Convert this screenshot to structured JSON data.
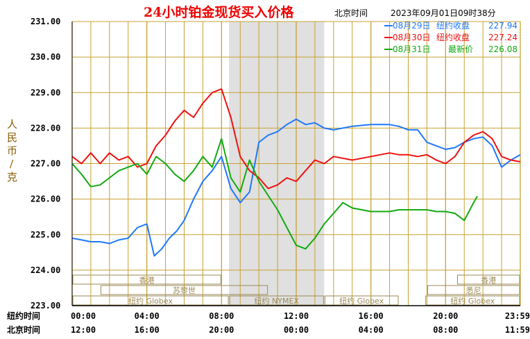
{
  "header": {
    "title": "24小时铂金现货买入价格",
    "beijing_time_label": "北京时间",
    "timestamp": "2023年09月01日09时38分"
  },
  "y_axis_label": [
    "人",
    "民",
    "币",
    "/",
    "克"
  ],
  "row_labels": {
    "ny": "纽约时间",
    "bj": "北京时间"
  },
  "colors": {
    "grid": "#c8a032",
    "axis": "#000000",
    "blue": "#1e78ff",
    "red": "#ee1111",
    "green": "#11aa11",
    "nymex_band": "#e0e0e0",
    "session": "#9a8a55"
  },
  "chart_data": {
    "type": "line",
    "title": "24小时铂金现货买入价格",
    "ylim": [
      223,
      231
    ],
    "y_ticks": [
      "231.00",
      "230.00",
      "229.00",
      "228.00",
      "227.00",
      "226.00",
      "225.00",
      "224.00",
      "223.00"
    ],
    "x_ticks_ny": [
      "00:00",
      "04:00",
      "08:00",
      "12:00",
      "16:00",
      "20:00",
      "23:59"
    ],
    "x_ticks_bj": [
      "12:00",
      "16:00",
      "20:00",
      "00:00",
      "04:00",
      "08:00",
      "11:59"
    ],
    "x_hours": [
      0,
      4,
      8,
      12,
      16,
      20,
      24
    ],
    "grid": true,
    "legend_position": "top-right",
    "sessions": [
      {
        "name": "香港",
        "row": 1,
        "start": 0,
        "end": 8
      },
      {
        "name": "香港",
        "row": 1,
        "start": 20.6,
        "end": 24
      },
      {
        "name": "苏黎世",
        "row": 2,
        "start": 1.5,
        "end": 10.5
      },
      {
        "name": "悉尼",
        "row": 2,
        "start": 19,
        "end": 24
      },
      {
        "name": "纽约 Globex",
        "row": 3,
        "start": 0,
        "end": 8.4
      },
      {
        "name": "纽约 NYMEX",
        "row": 3,
        "start": 8.4,
        "end": 13.5
      },
      {
        "name": "纽约 Globex",
        "row": 3,
        "start": 13.5,
        "end": 17.5
      },
      {
        "name": "纽约 Globex",
        "row": 3,
        "start": 18.9,
        "end": 24
      }
    ],
    "nymex_band": [
      8.4,
      13.5
    ],
    "series": [
      {
        "name": "08月29日",
        "legend_label": "纽约收盘",
        "legend_value": "227.94",
        "color": "#1e78ff",
        "x": [
          0,
          0.5,
          1,
          1.5,
          2,
          2.5,
          3,
          3.5,
          4,
          4.4,
          4.8,
          5.2,
          5.6,
          6,
          6.5,
          7,
          7.5,
          8,
          8.5,
          9,
          9.5,
          10,
          10.5,
          11,
          11.5,
          12,
          12.5,
          13,
          13.5,
          14,
          15,
          16,
          17,
          17.5,
          18,
          18.5,
          19,
          19.5,
          20,
          20.5,
          21,
          21.5,
          22,
          22.5,
          23,
          23.5,
          24
        ],
        "values": [
          224.9,
          224.85,
          224.8,
          224.8,
          224.75,
          224.85,
          224.9,
          225.2,
          225.3,
          224.4,
          224.6,
          224.9,
          225.1,
          225.4,
          226.0,
          226.5,
          226.8,
          227.2,
          226.3,
          225.9,
          226.2,
          227.6,
          227.8,
          227.9,
          228.1,
          228.25,
          228.1,
          228.15,
          228.0,
          227.95,
          228.05,
          228.1,
          228.1,
          228.05,
          227.95,
          227.95,
          227.6,
          227.5,
          227.4,
          227.45,
          227.6,
          227.7,
          227.75,
          227.5,
          226.9,
          227.1,
          227.25
        ]
      },
      {
        "name": "08月30日",
        "legend_label": "纽约收盘",
        "legend_value": "227.24",
        "color": "#ee1111",
        "x": [
          0,
          0.5,
          1,
          1.5,
          2,
          2.5,
          3,
          3.5,
          4,
          4.5,
          5,
          5.5,
          6,
          6.5,
          7,
          7.5,
          8,
          8.5,
          9,
          9.5,
          10,
          10.5,
          11,
          11.5,
          12,
          12.5,
          13,
          13.5,
          14,
          15,
          16,
          17,
          17.5,
          18,
          18.5,
          19,
          19.5,
          20,
          20.5,
          21,
          21.5,
          22,
          22.5,
          23,
          23.5,
          24
        ],
        "values": [
          227.2,
          227.0,
          227.3,
          227.0,
          227.3,
          227.1,
          227.2,
          226.9,
          227.0,
          227.5,
          227.8,
          228.2,
          228.5,
          228.3,
          228.7,
          229.0,
          229.1,
          228.3,
          227.2,
          226.8,
          226.6,
          226.3,
          226.4,
          226.6,
          226.5,
          226.8,
          227.1,
          227.0,
          227.2,
          227.1,
          227.2,
          227.3,
          227.25,
          227.25,
          227.2,
          227.25,
          227.1,
          227.0,
          227.2,
          227.6,
          227.8,
          227.9,
          227.7,
          227.2,
          227.1,
          227.05
        ]
      },
      {
        "name": "08月31日",
        "legend_label": "最新价",
        "legend_value": "226.08",
        "color": "#11aa11",
        "x": [
          0,
          0.5,
          1,
          1.5,
          2,
          2.5,
          3,
          3.5,
          4,
          4.5,
          5,
          5.5,
          6,
          6.5,
          7,
          7.5,
          8,
          8.5,
          9,
          9.5,
          10,
          10.5,
          11,
          11.5,
          12,
          12.5,
          13,
          13.5,
          14,
          14.5,
          15,
          16,
          17,
          17.5,
          18,
          18.5,
          19,
          19.5,
          20,
          20.5,
          21,
          21.5,
          21.7
        ],
        "values": [
          227.0,
          226.7,
          226.35,
          226.4,
          226.6,
          226.8,
          226.9,
          227.0,
          226.7,
          227.2,
          227.0,
          226.7,
          226.5,
          226.8,
          227.2,
          226.9,
          227.7,
          226.6,
          226.2,
          227.1,
          226.5,
          226.1,
          225.7,
          225.2,
          224.7,
          224.6,
          224.9,
          225.3,
          225.6,
          225.9,
          225.75,
          225.65,
          225.65,
          225.7,
          225.7,
          225.7,
          225.7,
          225.65,
          225.65,
          225.6,
          225.4,
          225.9,
          226.08
        ]
      }
    ]
  }
}
